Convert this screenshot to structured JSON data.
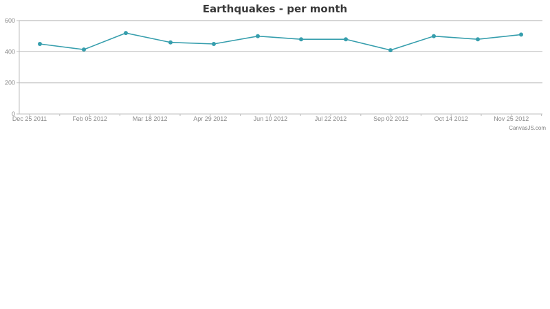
{
  "chart_data": {
    "type": "line",
    "title": "Earthquakes - per month",
    "xlabel": "",
    "ylabel": "",
    "ylim": [
      0,
      600
    ],
    "y_ticks": [
      0,
      200,
      400,
      600
    ],
    "x_tick_labels": [
      "Dec 25 2011",
      "Feb 05 2012",
      "Mar 18 2012",
      "Apr 29 2012",
      "Jun 10 2012",
      "Jul 22 2012",
      "Sep 02 2012",
      "Oct 14 2012",
      "Nov 25 2012"
    ],
    "grid": true,
    "legend": null,
    "series": [
      {
        "name": "Earthquakes",
        "color": "#369EAD",
        "x": [
          "2012-01",
          "2012-02",
          "2012-03",
          "2012-04",
          "2012-05",
          "2012-06",
          "2012-07",
          "2012-08",
          "2012-09",
          "2012-10",
          "2012-11",
          "2012-12"
        ],
        "values": [
          450,
          414,
          520,
          460,
          450,
          500,
          480,
          480,
          410,
          500,
          480,
          510
        ]
      }
    ]
  },
  "credit": "CanvasJS.com"
}
